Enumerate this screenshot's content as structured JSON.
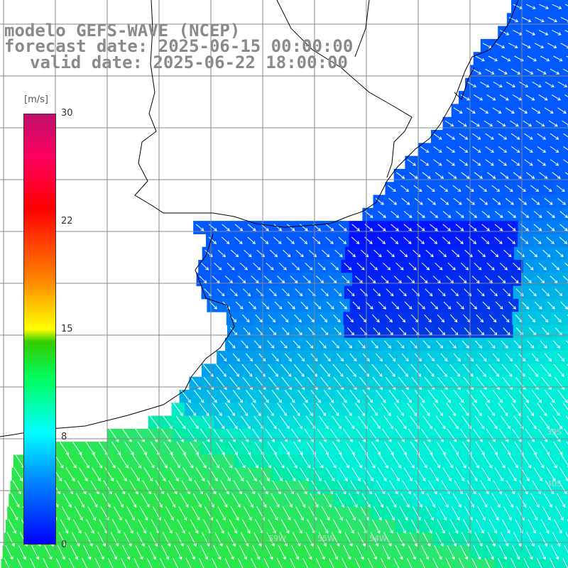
{
  "title": {
    "line1": "modelo GEFS-WAVE (NCEP)",
    "line2": "forecast date: 2025-06-15 00:00:00",
    "line3": "valid date: 2025-06-22 18:00:00"
  },
  "colorbar": {
    "unit": "[m/s]",
    "ticks": [
      "30",
      "22",
      "15",
      "8",
      "0"
    ],
    "tick_values": [
      30,
      22,
      15,
      8,
      0
    ],
    "range": [
      0,
      30
    ]
  },
  "grid_labels": [
    "39S",
    "40S",
    "59W",
    "55W",
    "54W"
  ],
  "colors": {
    "low_wind": "#0000ff",
    "mid_wind": "#00ffff",
    "high_wind": "#00ff00",
    "land": "#ffffff",
    "arrows": "#ffffff",
    "grid": "#888888",
    "coast": "#000000"
  }
}
